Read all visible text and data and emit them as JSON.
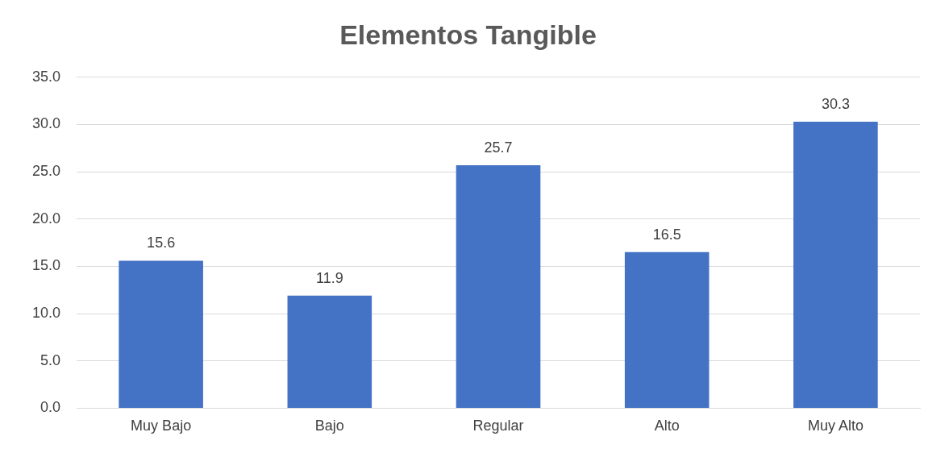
{
  "chart_data": {
    "type": "bar",
    "title": "Elementos Tangible",
    "categories": [
      "Muy Bajo",
      "Bajo",
      "Regular",
      "Alto",
      "Muy Alto"
    ],
    "values": [
      15.6,
      11.9,
      25.7,
      16.5,
      30.3
    ],
    "color": "#4472c4",
    "ylim": [
      0,
      35
    ],
    "yticks": [
      {
        "value": 0,
        "label": "0.0"
      },
      {
        "value": 5,
        "label": "5.0"
      },
      {
        "value": 10,
        "label": "10.0"
      },
      {
        "value": 15,
        "label": "15.0"
      },
      {
        "value": 20,
        "label": "20.0"
      },
      {
        "value": 25,
        "label": "25.0"
      },
      {
        "value": 30,
        "label": "30.0"
      },
      {
        "value": 35,
        "label": "35.0"
      }
    ],
    "grid": "y",
    "data_labels": true,
    "legend": false
  }
}
